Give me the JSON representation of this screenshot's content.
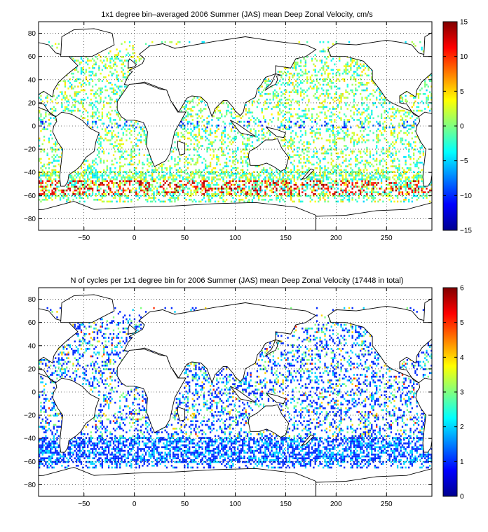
{
  "chart_data": [
    {
      "type": "heatmap",
      "title": "1x1 degree bin–averaged 2006 Summer (JAS) mean Deep Zonal Velocity, cm/s",
      "xlabel": "",
      "ylabel": "",
      "xlim": [
        -95,
        295
      ],
      "ylim": [
        -90,
        90
      ],
      "x_ticks": [
        -50,
        0,
        50,
        100,
        150,
        200,
        250
      ],
      "x_tick_labels": [
        "−50",
        "0",
        "50",
        "100",
        "150",
        "200",
        "250"
      ],
      "y_ticks": [
        -80,
        -60,
        -40,
        -20,
        0,
        20,
        40,
        60,
        80
      ],
      "y_tick_labels": [
        "−80",
        "−60",
        "−40",
        "−20",
        "0",
        "20",
        "40",
        "60",
        "80"
      ],
      "grid": "dotted",
      "colorbar": {
        "min": -15,
        "max": 15,
        "ticks": [
          -15,
          -10,
          -5,
          0,
          5,
          10,
          15
        ],
        "tick_labels": [
          "−15",
          "−10",
          "−5",
          "0",
          "5",
          "10",
          "15"
        ],
        "colormap": "jet"
      }
    },
    {
      "type": "heatmap",
      "title": "N of cycles per 1x1 degree bin for 2006 Summer (JAS) mean Deep Zonal Velocity (17448 in total)",
      "xlabel": "",
      "ylabel": "",
      "xlim": [
        -95,
        295
      ],
      "ylim": [
        -90,
        90
      ],
      "x_ticks": [
        -50,
        0,
        50,
        100,
        150,
        200,
        250
      ],
      "x_tick_labels": [
        "−50",
        "0",
        "50",
        "100",
        "150",
        "200",
        "250"
      ],
      "y_ticks": [
        -80,
        -60,
        -40,
        -20,
        0,
        20,
        40,
        60,
        80
      ],
      "y_tick_labels": [
        "−80",
        "−60",
        "−40",
        "−20",
        "0",
        "20",
        "40",
        "60",
        "80"
      ],
      "grid": "dotted",
      "total_cycles": 17448,
      "colorbar": {
        "min": 0,
        "max": 6,
        "ticks": [
          0,
          1,
          2,
          3,
          4,
          5,
          6
        ],
        "tick_labels": [
          "0",
          "1",
          "2",
          "3",
          "4",
          "5",
          "6"
        ],
        "colormap": "jet"
      }
    }
  ]
}
